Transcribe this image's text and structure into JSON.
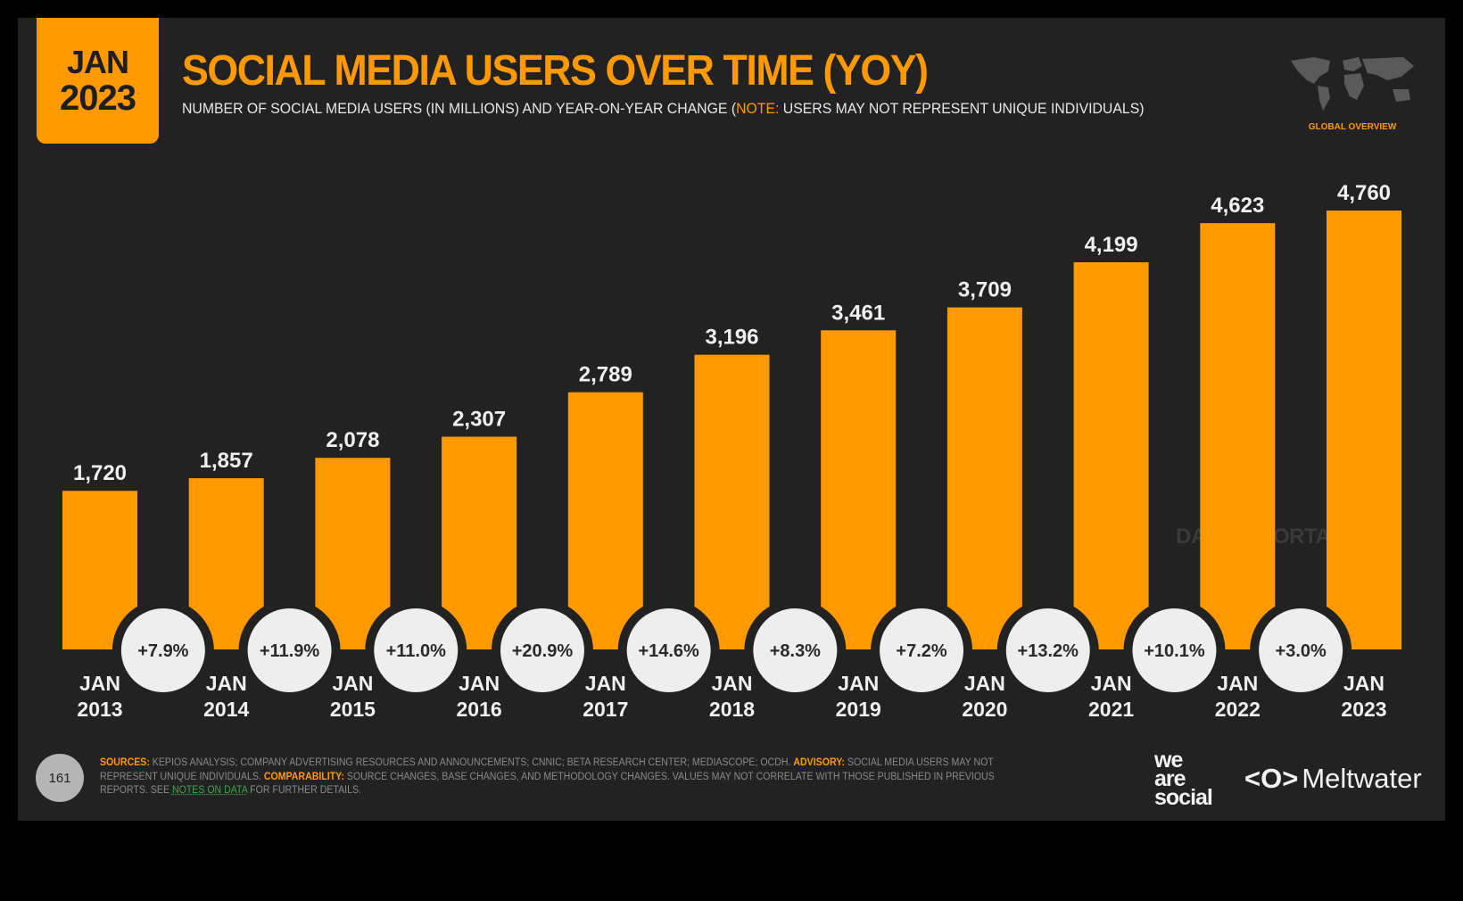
{
  "badge": {
    "month": "JAN",
    "year": "2023"
  },
  "header": {
    "title": "SOCIAL MEDIA USERS OVER TIME (YOY)",
    "subtitle_pre": "NUMBER OF SOCIAL MEDIA USERS (IN MILLIONS) AND YEAR-ON-YEAR CHANGE (",
    "subtitle_note": "NOTE:",
    "subtitle_post": " USERS MAY NOT REPRESENT UNIQUE INDIVIDUALS)",
    "region_label": "GLOBAL OVERVIEW",
    "region_icon": "world-map-icon"
  },
  "watermark": "DATAREPORTAL",
  "colors": {
    "bar": "#ff9900",
    "background": "#222222",
    "circle": "#eeeeee",
    "accent": "#ff9900",
    "link": "#3aa845"
  },
  "chart_data": {
    "type": "bar",
    "title": "SOCIAL MEDIA USERS OVER TIME (YOY)",
    "categories": [
      "JAN 2013",
      "JAN 2014",
      "JAN 2015",
      "JAN 2016",
      "JAN 2017",
      "JAN 2018",
      "JAN 2019",
      "JAN 2020",
      "JAN 2021",
      "JAN 2022",
      "JAN 2023"
    ],
    "category_lines": [
      [
        "JAN",
        "2013"
      ],
      [
        "JAN",
        "2014"
      ],
      [
        "JAN",
        "2015"
      ],
      [
        "JAN",
        "2016"
      ],
      [
        "JAN",
        "2017"
      ],
      [
        "JAN",
        "2018"
      ],
      [
        "JAN",
        "2019"
      ],
      [
        "JAN",
        "2020"
      ],
      [
        "JAN",
        "2021"
      ],
      [
        "JAN",
        "2022"
      ],
      [
        "JAN",
        "2023"
      ]
    ],
    "values": [
      1720,
      1857,
      2078,
      2307,
      2789,
      3196,
      3461,
      3709,
      4199,
      4623,
      4760
    ],
    "value_labels": [
      "1,720",
      "1,857",
      "2,078",
      "2,307",
      "2,789",
      "3,196",
      "3,461",
      "3,709",
      "4,199",
      "4,623",
      "4,760"
    ],
    "yoy_change": [
      "+7.9%",
      "+11.9%",
      "+11.0%",
      "+20.9%",
      "+14.6%",
      "+8.3%",
      "+7.2%",
      "+13.2%",
      "+10.1%",
      "+3.0%"
    ],
    "ylim": [
      0,
      4760
    ],
    "grid": false,
    "legend": "none"
  },
  "footer": {
    "page_number": "161",
    "sources_label": "SOURCES:",
    "sources_text": " KEPIOS ANALYSIS; COMPANY ADVERTISING RESOURCES AND ANNOUNCEMENTS; CNNIC; BETA RESEARCH CENTER; MEDIASCOPE; OCDH. ",
    "advisory_label": "ADVISORY:",
    "advisory_text": " SOCIAL MEDIA USERS MAY NOT REPRESENT UNIQUE INDIVIDUALS. ",
    "comparability_label": "COMPARABILITY:",
    "comparability_text": " SOURCE CHANGES, BASE CHANGES, AND METHODOLOGY CHANGES. VALUES MAY NOT CORRELATE WITH THOSE PUBLISHED IN PREVIOUS REPORTS. SEE ",
    "link_text": "NOTES ON DATA",
    "tail_text": " FOR FURTHER DETAILS.",
    "logo1": "we are social",
    "logo2": "Meltwater"
  }
}
